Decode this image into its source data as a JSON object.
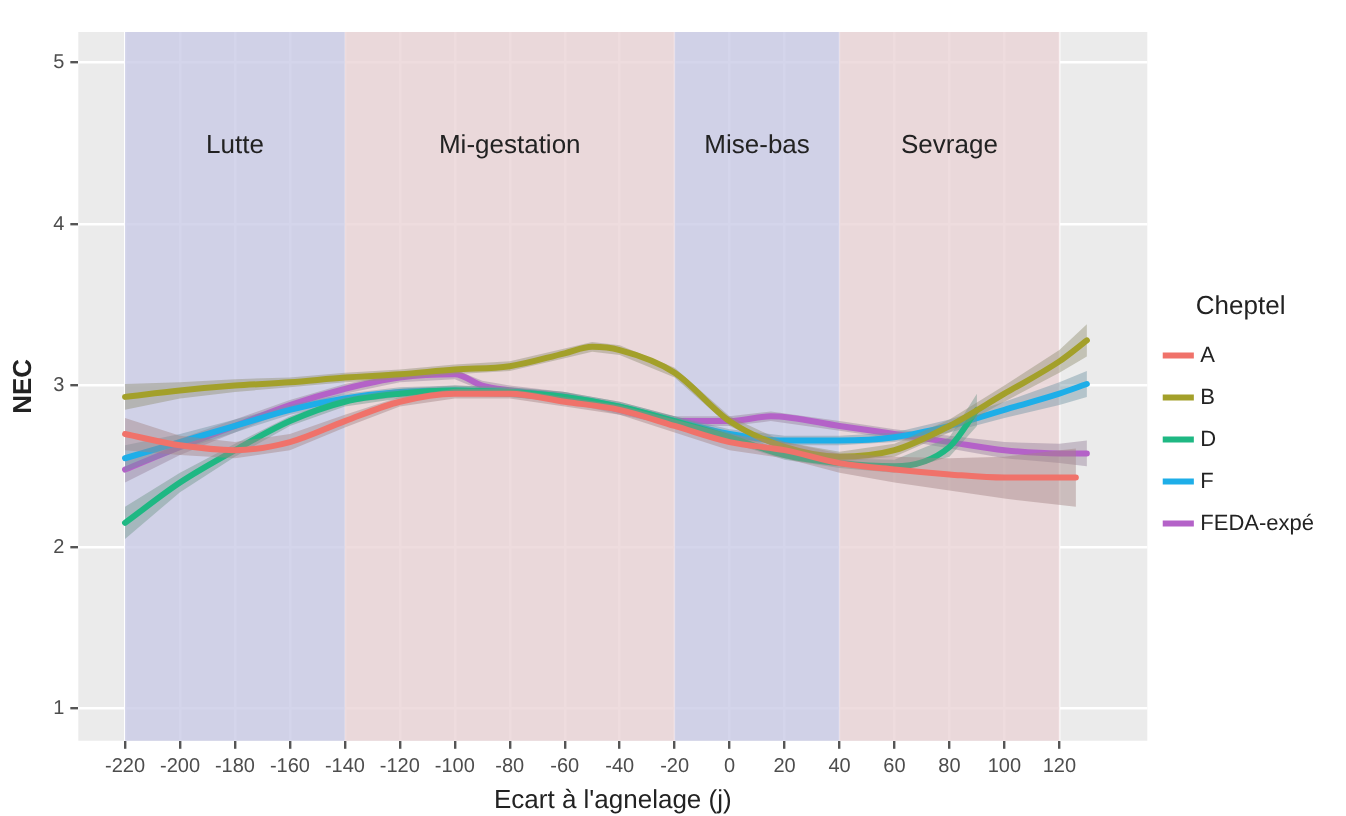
{
  "chart_data": {
    "type": "line",
    "xlabel": "Ecart à l'agnelage (j)",
    "ylabel": "NEC",
    "legend_title": "Cheptel",
    "legend": "right",
    "grid": true,
    "marker": "none",
    "line_style": "solid",
    "xlim": [
      -237,
      152
    ],
    "ylim": [
      0.8,
      5.19
    ],
    "xticks": [
      -220,
      -200,
      -180,
      -160,
      -140,
      -120,
      -100,
      -80,
      -60,
      -40,
      -20,
      0,
      20,
      40,
      60,
      80,
      100,
      120
    ],
    "yticks": [
      1,
      2,
      3,
      4,
      5
    ],
    "bands": [
      {
        "axis": "x",
        "from": -220,
        "to": -140,
        "label": "Lutte",
        "color": "#c9cbe6"
      },
      {
        "axis": "x",
        "from": -140,
        "to": -20,
        "label": "Mi-gestation",
        "color": "#ead3d6"
      },
      {
        "axis": "x",
        "from": -20,
        "to": 40,
        "label": "Mise-bas",
        "color": "#c9cbe6"
      },
      {
        "axis": "x",
        "from": 40,
        "to": 120,
        "label": "Sevrage",
        "color": "#ead3d6"
      }
    ],
    "series": [
      {
        "name": "A",
        "color": "#f0726a",
        "x": [
          -220,
          -200,
          -180,
          -160,
          -140,
          -120,
          -100,
          -80,
          -60,
          -40,
          -20,
          0,
          20,
          40,
          60,
          80,
          100,
          126
        ],
        "values": [
          2.7,
          2.63,
          2.6,
          2.65,
          2.78,
          2.9,
          2.95,
          2.95,
          2.9,
          2.85,
          2.75,
          2.65,
          2.6,
          2.52,
          2.48,
          2.45,
          2.43,
          2.43
        ],
        "lower": [
          2.6,
          2.57,
          2.55,
          2.6,
          2.74,
          2.87,
          2.92,
          2.92,
          2.87,
          2.82,
          2.71,
          2.6,
          2.55,
          2.46,
          2.4,
          2.35,
          2.3,
          2.25
        ],
        "upper": [
          2.8,
          2.69,
          2.65,
          2.7,
          2.82,
          2.93,
          2.98,
          2.98,
          2.93,
          2.88,
          2.79,
          2.7,
          2.65,
          2.58,
          2.56,
          2.55,
          2.56,
          2.61
        ]
      },
      {
        "name": "B",
        "color": "#a3a02a",
        "x": [
          -220,
          -200,
          -180,
          -160,
          -140,
          -120,
          -100,
          -80,
          -60,
          -50,
          -40,
          -20,
          0,
          20,
          40,
          60,
          80,
          100,
          120,
          130
        ],
        "values": [
          2.93,
          2.97,
          3.0,
          3.02,
          3.05,
          3.07,
          3.1,
          3.12,
          3.2,
          3.24,
          3.22,
          3.08,
          2.78,
          2.62,
          2.56,
          2.6,
          2.75,
          2.95,
          3.15,
          3.28
        ],
        "lower": [
          2.85,
          2.92,
          2.96,
          2.99,
          3.02,
          3.04,
          3.07,
          3.09,
          3.17,
          3.21,
          3.19,
          3.05,
          2.75,
          2.59,
          2.53,
          2.56,
          2.71,
          2.9,
          3.08,
          3.18
        ],
        "upper": [
          3.01,
          3.02,
          3.04,
          3.05,
          3.08,
          3.1,
          3.13,
          3.15,
          3.23,
          3.27,
          3.25,
          3.11,
          2.81,
          2.65,
          2.59,
          2.64,
          2.79,
          3.0,
          3.22,
          3.38
        ]
      },
      {
        "name": "D",
        "color": "#1fb883",
        "x": [
          -220,
          -200,
          -180,
          -160,
          -140,
          -120,
          -100,
          -80,
          -60,
          -40,
          -20,
          0,
          20,
          40,
          60,
          80,
          90
        ],
        "values": [
          2.15,
          2.4,
          2.6,
          2.78,
          2.9,
          2.95,
          2.97,
          2.96,
          2.93,
          2.87,
          2.78,
          2.68,
          2.57,
          2.52,
          2.5,
          2.62,
          2.85
        ],
        "lower": [
          2.05,
          2.34,
          2.56,
          2.75,
          2.87,
          2.92,
          2.94,
          2.93,
          2.9,
          2.84,
          2.75,
          2.65,
          2.54,
          2.49,
          2.46,
          2.56,
          2.75
        ],
        "upper": [
          2.25,
          2.46,
          2.64,
          2.81,
          2.93,
          2.98,
          3.0,
          2.99,
          2.96,
          2.9,
          2.81,
          2.71,
          2.6,
          2.55,
          2.54,
          2.68,
          2.95
        ]
      },
      {
        "name": "F",
        "color": "#1eaee8",
        "x": [
          -220,
          -200,
          -180,
          -160,
          -140,
          -120,
          -100,
          -80,
          -60,
          -40,
          -20,
          0,
          20,
          40,
          60,
          80,
          100,
          120,
          130
        ],
        "values": [
          2.55,
          2.65,
          2.75,
          2.85,
          2.92,
          2.96,
          2.97,
          2.96,
          2.93,
          2.87,
          2.78,
          2.7,
          2.66,
          2.66,
          2.68,
          2.75,
          2.85,
          2.95,
          3.01
        ],
        "lower": [
          2.47,
          2.6,
          2.71,
          2.82,
          2.89,
          2.93,
          2.94,
          2.93,
          2.9,
          2.84,
          2.75,
          2.67,
          2.63,
          2.63,
          2.65,
          2.71,
          2.8,
          2.88,
          2.93
        ],
        "upper": [
          2.63,
          2.7,
          2.79,
          2.88,
          2.95,
          2.99,
          3.0,
          2.99,
          2.96,
          2.9,
          2.81,
          2.73,
          2.69,
          2.69,
          2.71,
          2.79,
          2.9,
          3.02,
          3.09
        ]
      },
      {
        "name": "FEDA-expé",
        "color": "#b462c8",
        "x": [
          -220,
          -200,
          -180,
          -160,
          -140,
          -120,
          -100,
          -90,
          -80,
          -60,
          -40,
          -20,
          0,
          15,
          40,
          60,
          80,
          100,
          120,
          130
        ],
        "values": [
          2.48,
          2.62,
          2.75,
          2.88,
          2.98,
          3.05,
          3.07,
          3.0,
          2.97,
          2.93,
          2.85,
          2.78,
          2.78,
          2.81,
          2.75,
          2.7,
          2.65,
          2.6,
          2.58,
          2.58
        ],
        "lower": [
          2.4,
          2.57,
          2.71,
          2.85,
          2.95,
          3.02,
          3.04,
          2.97,
          2.94,
          2.9,
          2.82,
          2.75,
          2.75,
          2.78,
          2.72,
          2.67,
          2.61,
          2.55,
          2.52,
          2.5
        ],
        "upper": [
          2.56,
          2.67,
          2.79,
          2.91,
          3.01,
          3.08,
          3.1,
          3.03,
          3.0,
          2.96,
          2.88,
          2.81,
          2.81,
          2.84,
          2.78,
          2.73,
          2.69,
          2.65,
          2.64,
          2.66
        ]
      }
    ]
  }
}
